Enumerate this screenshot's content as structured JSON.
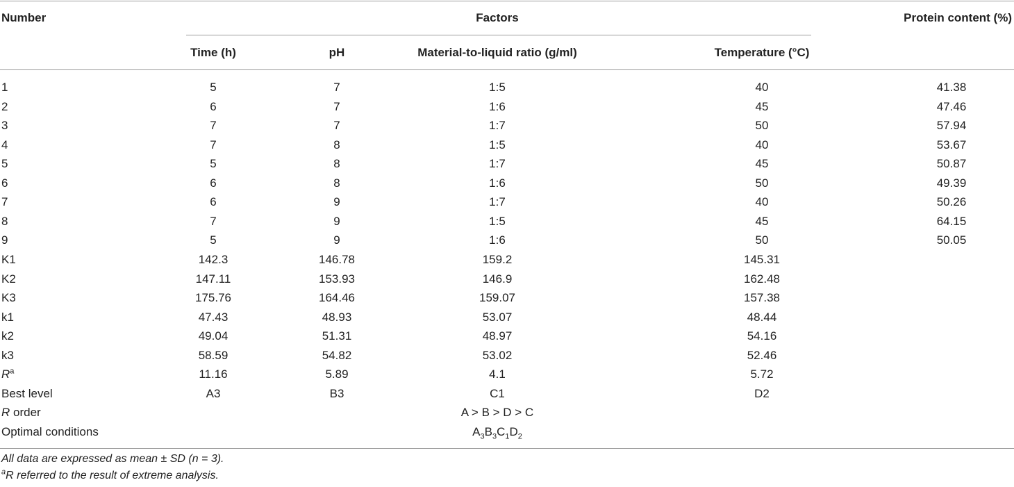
{
  "table": {
    "headers": {
      "number": "Number",
      "factors": "Factors",
      "protein": "Protein content (%)",
      "columns": [
        "Time (h)",
        "pH",
        "Material-to-liquid ratio (g/ml)",
        "Temperature (°C)"
      ]
    },
    "rows": [
      [
        "1",
        "5",
        "7",
        "1:5",
        "40",
        "41.38"
      ],
      [
        "2",
        "6",
        "7",
        "1:6",
        "45",
        "47.46"
      ],
      [
        "3",
        "7",
        "7",
        "1:7",
        "50",
        "57.94"
      ],
      [
        "4",
        "7",
        "8",
        "1:5",
        "40",
        "53.67"
      ],
      [
        "5",
        "5",
        "8",
        "1:7",
        "45",
        "50.87"
      ],
      [
        "6",
        "6",
        "8",
        "1:6",
        "50",
        "49.39"
      ],
      [
        "7",
        "6",
        "9",
        "1:7",
        "40",
        "50.26"
      ],
      [
        "8",
        "7",
        "9",
        "1:5",
        "45",
        "64.15"
      ],
      [
        "9",
        "5",
        "9",
        "1:6",
        "50",
        "50.05"
      ],
      [
        "K1",
        "142.3",
        "146.78",
        "159.2",
        "145.31"
      ],
      [
        "K2",
        "147.11",
        "153.93",
        "146.9",
        "162.48"
      ],
      [
        "K3",
        "175.76",
        "164.46",
        "159.07",
        "157.38"
      ],
      [
        "k1",
        "47.43",
        "48.93",
        "53.07",
        "48.44"
      ],
      [
        "k2",
        "49.04",
        "51.31",
        "48.97",
        "54.16"
      ],
      [
        "k3",
        "58.59",
        "54.82",
        "53.02",
        "52.46"
      ]
    ],
    "r_row": {
      "label": {
        "text": "R",
        "sup": "a"
      },
      "values": [
        "11.16",
        "5.89",
        "4.1",
        "5.72"
      ]
    },
    "best_level": [
      "Best level",
      "A3",
      "B3",
      "C1",
      "D2"
    ],
    "r_order": {
      "label": {
        "italic": "R",
        "text": " order"
      },
      "value": "A > B > D > C"
    },
    "optimal": {
      "label": "Optimal conditions",
      "value": [
        [
          "A",
          "3"
        ],
        [
          "B",
          "3"
        ],
        [
          "C",
          "1"
        ],
        [
          "D",
          "2"
        ]
      ]
    }
  },
  "footnotes": [
    {
      "text": "All data are expressed as mean ± SD (n = 3)."
    },
    {
      "sup": "a",
      "text": "R referred to the result of extreme analysis."
    }
  ]
}
